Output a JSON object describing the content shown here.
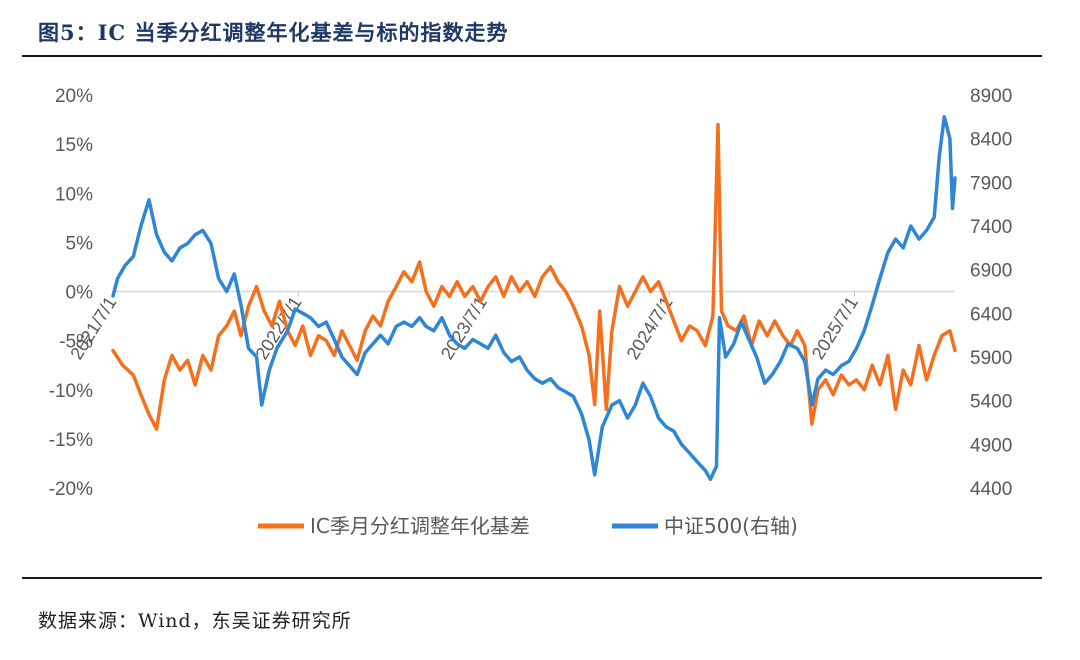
{
  "header": {
    "title": "图5：IC 当季分红调整年化基差与标的指数走势"
  },
  "footer": {
    "source": "数据来源：Wind，东吴证券研究所"
  },
  "chart_data": {
    "type": "line",
    "title": "图5：IC 当季分红调整年化基差与标的指数走势",
    "grid": false,
    "legend_position": "bottom",
    "y_left": {
      "ylim": [
        -20,
        20
      ],
      "ticks": [
        "20%",
        "15%",
        "10%",
        "5%",
        "0%",
        "-5%",
        "-10%",
        "-15%",
        "-20%"
      ]
    },
    "y_right": {
      "ylim": [
        4400,
        8900
      ],
      "ticks": [
        "8900",
        "8400",
        "7900",
        "7400",
        "6900",
        "6400",
        "5900",
        "5400",
        "4900",
        "4400"
      ]
    },
    "x_ticks": [
      "2021/7/1",
      "2022/7/1",
      "2023/7/1",
      "2024/7/1",
      "2025/7/1"
    ],
    "x_range": [
      "2021/7/1",
      "2026/1/15"
    ],
    "series": [
      {
        "name": "IC季月分红调整年化基差",
        "axis": "left",
        "color": "#f4701e",
        "points": [
          [
            "2021/7/1",
            -6.0
          ],
          [
            "2021/7/20",
            -7.5
          ],
          [
            "2021/8/10",
            -8.5
          ],
          [
            "2021/8/25",
            -10.5
          ],
          [
            "2021/9/10",
            -12.5
          ],
          [
            "2021/9/25",
            -14.0
          ],
          [
            "2021/10/10",
            -9.0
          ],
          [
            "2021/10/25",
            -6.5
          ],
          [
            "2021/11/10",
            -8.0
          ],
          [
            "2021/11/25",
            -7.0
          ],
          [
            "2021/12/10",
            -9.5
          ],
          [
            "2021/12/25",
            -6.5
          ],
          [
            "2022/1/10",
            -8.0
          ],
          [
            "2022/1/25",
            -4.5
          ],
          [
            "2022/2/10",
            -3.5
          ],
          [
            "2022/2/25",
            -2.0
          ],
          [
            "2022/3/10",
            -4.5
          ],
          [
            "2022/3/25",
            -1.5
          ],
          [
            "2022/4/10",
            0.5
          ],
          [
            "2022/4/25",
            -2.0
          ],
          [
            "2022/5/10",
            -3.5
          ],
          [
            "2022/5/25",
            -1.0
          ],
          [
            "2022/6/10",
            -4.0
          ],
          [
            "2022/6/25",
            -5.5
          ],
          [
            "2022/7/10",
            -3.5
          ],
          [
            "2022/7/25",
            -6.5
          ],
          [
            "2022/8/10",
            -4.5
          ],
          [
            "2022/8/25",
            -5.0
          ],
          [
            "2022/9/10",
            -6.5
          ],
          [
            "2022/9/25",
            -4.0
          ],
          [
            "2022/10/10",
            -5.5
          ],
          [
            "2022/10/25",
            -7.0
          ],
          [
            "2022/11/10",
            -4.0
          ],
          [
            "2022/11/25",
            -2.5
          ],
          [
            "2022/12/10",
            -3.5
          ],
          [
            "2022/12/25",
            -1.0
          ],
          [
            "2023/1/10",
            0.5
          ],
          [
            "2023/1/25",
            2.0
          ],
          [
            "2023/2/10",
            1.0
          ],
          [
            "2023/2/25",
            3.0
          ],
          [
            "2023/3/10",
            0.0
          ],
          [
            "2023/3/25",
            -1.5
          ],
          [
            "2023/4/10",
            0.5
          ],
          [
            "2023/4/25",
            -0.5
          ],
          [
            "2023/5/10",
            1.0
          ],
          [
            "2023/5/25",
            -0.5
          ],
          [
            "2023/6/10",
            0.5
          ],
          [
            "2023/6/25",
            -1.0
          ],
          [
            "2023/7/10",
            0.5
          ],
          [
            "2023/7/25",
            1.5
          ],
          [
            "2023/8/10",
            -0.5
          ],
          [
            "2023/8/25",
            1.5
          ],
          [
            "2023/9/10",
            0.0
          ],
          [
            "2023/9/25",
            1.0
          ],
          [
            "2023/10/10",
            -0.5
          ],
          [
            "2023/10/25",
            1.5
          ],
          [
            "2023/11/10",
            2.5
          ],
          [
            "2023/11/25",
            1.0
          ],
          [
            "2023/12/10",
            0.0
          ],
          [
            "2023/12/25",
            -1.5
          ],
          [
            "2024/1/10",
            -3.5
          ],
          [
            "2024/1/25",
            -6.5
          ],
          [
            "2024/2/5",
            -11.5
          ],
          [
            "2024/2/15",
            -2.0
          ],
          [
            "2024/2/28",
            -12.0
          ],
          [
            "2024/3/10",
            -4.0
          ],
          [
            "2024/3/25",
            0.5
          ],
          [
            "2024/4/10",
            -1.5
          ],
          [
            "2024/4/25",
            0.0
          ],
          [
            "2024/5/10",
            1.5
          ],
          [
            "2024/5/25",
            0.0
          ],
          [
            "2024/6/10",
            1.0
          ],
          [
            "2024/6/25",
            -1.0
          ],
          [
            "2024/7/10",
            -3.0
          ],
          [
            "2024/7/25",
            -5.0
          ],
          [
            "2024/8/10",
            -3.5
          ],
          [
            "2024/8/25",
            -4.0
          ],
          [
            "2024/9/10",
            -5.5
          ],
          [
            "2024/9/25",
            -2.5
          ],
          [
            "2024/10/5",
            17.0
          ],
          [
            "2024/10/12",
            -2.0
          ],
          [
            "2024/10/25",
            -3.5
          ],
          [
            "2024/11/10",
            -4.0
          ],
          [
            "2024/11/25",
            -2.5
          ],
          [
            "2024/12/10",
            -5.5
          ],
          [
            "2024/12/25",
            -3.0
          ],
          [
            "2025/1/10",
            -4.5
          ],
          [
            "2025/1/25",
            -3.0
          ],
          [
            "2025/2/10",
            -4.5
          ],
          [
            "2025/2/25",
            -5.5
          ],
          [
            "2025/3/10",
            -4.0
          ],
          [
            "2025/3/25",
            -5.5
          ],
          [
            "2025/4/8",
            -13.5
          ],
          [
            "2025/4/20",
            -10.0
          ],
          [
            "2025/5/5",
            -9.0
          ],
          [
            "2025/5/20",
            -10.5
          ],
          [
            "2025/6/5",
            -8.5
          ],
          [
            "2025/6/20",
            -9.5
          ],
          [
            "2025/7/5",
            -9.0
          ],
          [
            "2025/7/20",
            -10.0
          ],
          [
            "2025/8/5",
            -7.5
          ],
          [
            "2025/8/20",
            -9.5
          ],
          [
            "2025/9/5",
            -6.5
          ],
          [
            "2025/9/20",
            -12.0
          ],
          [
            "2025/10/5",
            -8.0
          ],
          [
            "2025/10/20",
            -9.5
          ],
          [
            "2025/11/5",
            -5.5
          ],
          [
            "2025/11/20",
            -9.0
          ],
          [
            "2025/12/5",
            -6.5
          ],
          [
            "2025/12/20",
            -4.5
          ],
          [
            "2026/1/5",
            -4.0
          ],
          [
            "2026/1/15",
            -6.0
          ]
        ]
      },
      {
        "name": "中证500(右轴)",
        "axis": "right",
        "color": "#2e86d4",
        "points": [
          [
            "2021/7/1",
            6600
          ],
          [
            "2021/7/10",
            6800
          ],
          [
            "2021/7/25",
            6950
          ],
          [
            "2021/8/10",
            7050
          ],
          [
            "2021/8/25",
            7400
          ],
          [
            "2021/9/10",
            7700
          ],
          [
            "2021/9/25",
            7300
          ],
          [
            "2021/10/10",
            7100
          ],
          [
            "2021/10/25",
            7000
          ],
          [
            "2021/11/10",
            7150
          ],
          [
            "2021/11/25",
            7200
          ],
          [
            "2021/12/10",
            7300
          ],
          [
            "2021/12/25",
            7350
          ],
          [
            "2022/1/10",
            7200
          ],
          [
            "2022/1/25",
            6800
          ],
          [
            "2022/2/10",
            6650
          ],
          [
            "2022/2/25",
            6850
          ],
          [
            "2022/3/10",
            6500
          ],
          [
            "2022/3/25",
            6000
          ],
          [
            "2022/4/10",
            5900
          ],
          [
            "2022/4/20",
            5350
          ],
          [
            "2022/5/5",
            5750
          ],
          [
            "2022/5/20",
            6000
          ],
          [
            "2022/6/10",
            6200
          ],
          [
            "2022/6/25",
            6450
          ],
          [
            "2022/7/10",
            6400
          ],
          [
            "2022/7/25",
            6350
          ],
          [
            "2022/8/10",
            6250
          ],
          [
            "2022/8/25",
            6300
          ],
          [
            "2022/9/10",
            6100
          ],
          [
            "2022/9/25",
            5900
          ],
          [
            "2022/10/10",
            5800
          ],
          [
            "2022/10/25",
            5700
          ],
          [
            "2022/11/10",
            5950
          ],
          [
            "2022/11/25",
            6050
          ],
          [
            "2022/12/10",
            6150
          ],
          [
            "2022/12/25",
            6050
          ],
          [
            "2023/1/10",
            6250
          ],
          [
            "2023/1/25",
            6300
          ],
          [
            "2023/2/10",
            6250
          ],
          [
            "2023/2/25",
            6350
          ],
          [
            "2023/3/10",
            6250
          ],
          [
            "2023/3/25",
            6200
          ],
          [
            "2023/4/10",
            6350
          ],
          [
            "2023/4/25",
            6150
          ],
          [
            "2023/5/10",
            6050
          ],
          [
            "2023/5/25",
            6000
          ],
          [
            "2023/6/10",
            6100
          ],
          [
            "2023/6/25",
            6050
          ],
          [
            "2023/7/10",
            6000
          ],
          [
            "2023/7/25",
            6150
          ],
          [
            "2023/8/10",
            5950
          ],
          [
            "2023/8/25",
            5850
          ],
          [
            "2023/9/10",
            5900
          ],
          [
            "2023/9/25",
            5750
          ],
          [
            "2023/10/10",
            5650
          ],
          [
            "2023/10/25",
            5600
          ],
          [
            "2023/11/10",
            5650
          ],
          [
            "2023/11/25",
            5550
          ],
          [
            "2023/12/10",
            5500
          ],
          [
            "2023/12/25",
            5450
          ],
          [
            "2024/1/10",
            5250
          ],
          [
            "2024/1/25",
            4950
          ],
          [
            "2024/2/5",
            4550
          ],
          [
            "2024/2/20",
            5100
          ],
          [
            "2024/3/10",
            5350
          ],
          [
            "2024/3/25",
            5400
          ],
          [
            "2024/4/10",
            5200
          ],
          [
            "2024/4/25",
            5350
          ],
          [
            "2024/5/10",
            5600
          ],
          [
            "2024/5/25",
            5450
          ],
          [
            "2024/6/10",
            5200
          ],
          [
            "2024/6/25",
            5100
          ],
          [
            "2024/7/10",
            5050
          ],
          [
            "2024/7/25",
            4900
          ],
          [
            "2024/8/10",
            4800
          ],
          [
            "2024/8/25",
            4700
          ],
          [
            "2024/9/10",
            4600
          ],
          [
            "2024/9/20",
            4500
          ],
          [
            "2024/10/2",
            4650
          ],
          [
            "2024/10/8",
            6350
          ],
          [
            "2024/10/20",
            5900
          ],
          [
            "2024/11/5",
            6050
          ],
          [
            "2024/11/20",
            6300
          ],
          [
            "2024/12/5",
            6100
          ],
          [
            "2024/12/20",
            5900
          ],
          [
            "2025/1/5",
            5600
          ],
          [
            "2025/1/20",
            5700
          ],
          [
            "2025/2/5",
            5850
          ],
          [
            "2025/2/20",
            6050
          ],
          [
            "2025/3/10",
            6000
          ],
          [
            "2025/3/25",
            5850
          ],
          [
            "2025/4/8",
            5350
          ],
          [
            "2025/4/20",
            5650
          ],
          [
            "2025/5/5",
            5750
          ],
          [
            "2025/5/20",
            5700
          ],
          [
            "2025/6/5",
            5800
          ],
          [
            "2025/6/20",
            5850
          ],
          [
            "2025/7/5",
            6000
          ],
          [
            "2025/7/20",
            6200
          ],
          [
            "2025/8/5",
            6500
          ],
          [
            "2025/8/20",
            6800
          ],
          [
            "2025/9/5",
            7100
          ],
          [
            "2025/9/20",
            7250
          ],
          [
            "2025/10/5",
            7150
          ],
          [
            "2025/10/20",
            7400
          ],
          [
            "2025/11/5",
            7250
          ],
          [
            "2025/11/20",
            7350
          ],
          [
            "2025/12/5",
            7500
          ],
          [
            "2025/12/15",
            8200
          ],
          [
            "2025/12/25",
            8650
          ],
          [
            "2026/1/5",
            8400
          ],
          [
            "2026/1/10",
            7600
          ],
          [
            "2026/1/15",
            7950
          ]
        ]
      }
    ]
  }
}
